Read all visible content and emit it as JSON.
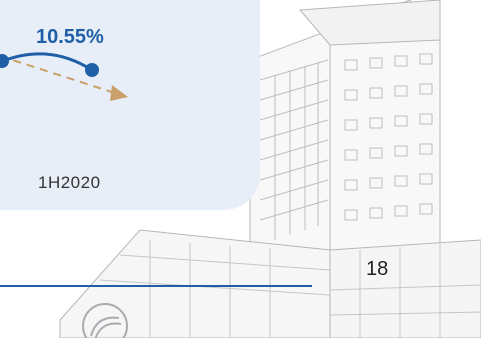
{
  "chart": {
    "value_label": "10.55%",
    "period_label": "1H2020"
  },
  "footer": {
    "page_number": "18"
  },
  "colors": {
    "accent_blue": "#1f5fa8",
    "trend_dashed": "#c9a06a",
    "panel_bg": "#e8eef7"
  },
  "icons": {
    "background_image": "building-illustration",
    "logo": "company-logo-icon"
  }
}
